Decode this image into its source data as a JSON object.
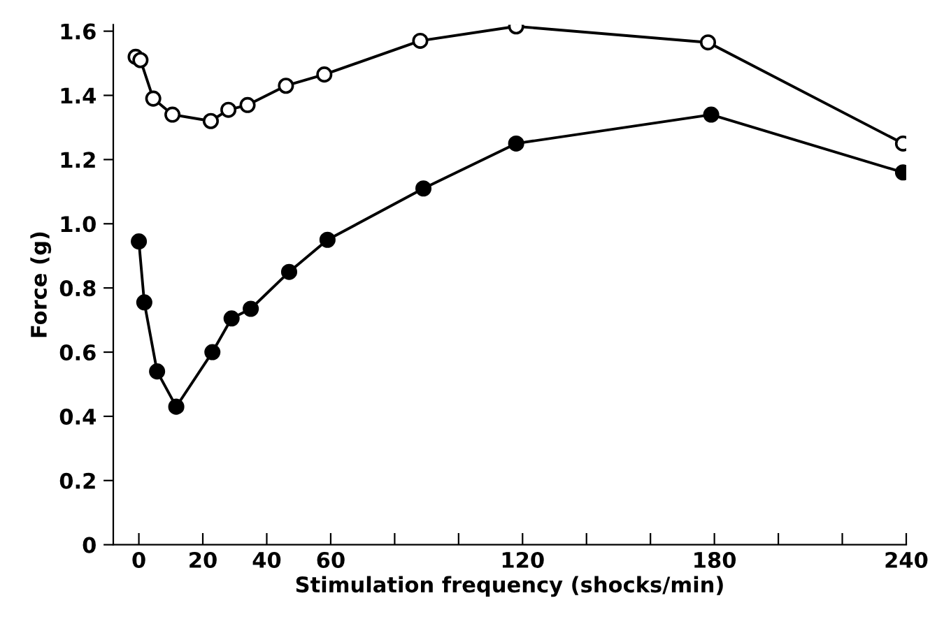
{
  "chart_data": {
    "type": "line",
    "xlabel": "Stimulation frequency (shocks/min)",
    "ylabel": "Force (g)",
    "xlim": [
      -8,
      240
    ],
    "ylim": [
      0,
      1.62
    ],
    "xticks": [
      0,
      20,
      40,
      60,
      {
        "value": 80,
        "label": null
      },
      {
        "value": 100,
        "label": null
      },
      120,
      {
        "value": 140,
        "label": null
      },
      {
        "value": 160,
        "label": null
      },
      180,
      {
        "value": 200,
        "label": null
      },
      {
        "value": 220,
        "label": null
      },
      240
    ],
    "yticks": [
      0,
      0.2,
      0.4,
      0.6,
      0.8,
      {
        "value": 1.0,
        "label": "1.0"
      },
      1.2,
      1.4,
      1.6
    ],
    "marker": "circle",
    "line_style": "solid",
    "grid": false,
    "legend": false,
    "series": [
      {
        "color": "#000000",
        "x": [
          -1,
          0.5,
          4.5,
          10.5,
          22.5,
          28,
          34,
          46,
          58,
          88,
          118,
          178,
          239
        ],
        "values": [
          1.52,
          1.51,
          1.39,
          1.34,
          1.32,
          1.355,
          1.37,
          1.43,
          1.465,
          1.57,
          1.615,
          1.565,
          1.25
        ]
      },
      {
        "color": "#000000",
        "x": [
          0,
          1.7,
          5.7,
          11.7,
          23,
          29,
          35,
          47,
          59,
          89,
          118,
          179,
          239
        ],
        "values": [
          0.945,
          0.755,
          0.54,
          0.43,
          0.6,
          0.705,
          0.735,
          0.85,
          0.95,
          1.11,
          1.25,
          1.34,
          1.16
        ]
      }
    ]
  }
}
